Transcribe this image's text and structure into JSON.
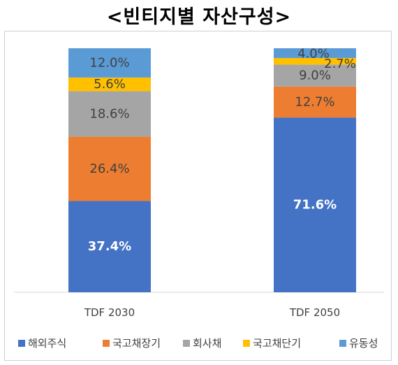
{
  "title": "<빈티지별 자산구성>",
  "chart_data": {
    "type": "bar",
    "stacked": true,
    "categories": [
      "TDF 2030",
      "TDF 2050"
    ],
    "ylim": [
      0,
      100
    ],
    "legend_position": "bottom",
    "grid": false,
    "series": [
      {
        "name": "해외주식",
        "color": "#4472C4",
        "values": [
          37.4,
          71.6
        ],
        "labels": [
          "37.4%",
          "71.6%"
        ]
      },
      {
        "name": "국고채장기",
        "color": "#ED7D31",
        "values": [
          26.4,
          12.7
        ],
        "labels": [
          "26.4%",
          "12.7%"
        ]
      },
      {
        "name": "회사채",
        "color": "#A5A5A5",
        "values": [
          18.6,
          9.0
        ],
        "labels": [
          "18.6%",
          "9.0%"
        ]
      },
      {
        "name": "국고채단기",
        "color": "#FFC000",
        "values": [
          5.6,
          2.7
        ],
        "labels": [
          "5.6%",
          "2.7%"
        ]
      },
      {
        "name": "유동성",
        "color": "#5B9BD5",
        "values": [
          12.0,
          4.0
        ],
        "labels": [
          "12.0%",
          "4.0%"
        ]
      }
    ]
  }
}
